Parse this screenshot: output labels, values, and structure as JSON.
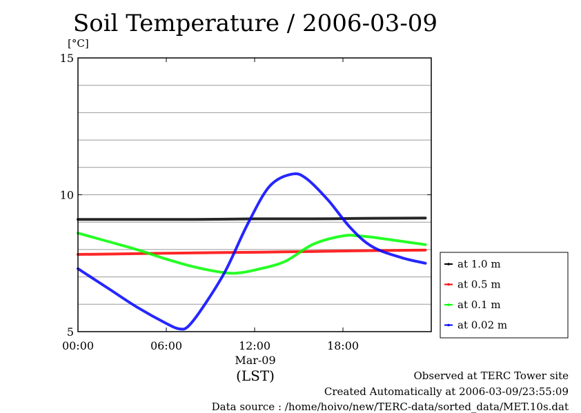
{
  "title": "Soil Temperature / 2006-03-09",
  "ylabel": "[°C]",
  "xlabel_date": "Mar-09",
  "xlabel_tz": "(LST)",
  "footer": {
    "line1": "Observed at TERC Tower site",
    "line2": "Created Automatically at 2006-03-09/23:55:09",
    "line3": "Data source : /home/hoivo/new/TERC-data/sorted_data/MET.10s.dat"
  },
  "chart_data": {
    "type": "line",
    "title": "Soil Temperature / 2006-03-09",
    "ylabel": "[°C]",
    "xlabel": "(LST)",
    "xlim": [
      0,
      24
    ],
    "ylim": [
      5,
      15
    ],
    "x_ticks": [
      0,
      6,
      12,
      18
    ],
    "x_tick_labels": [
      "00:00",
      "06:00",
      "12:00",
      "18:00"
    ],
    "y_ticks": [
      5,
      10,
      15
    ],
    "y_tick_labels": [
      "5",
      "10",
      "15"
    ],
    "grid_y": [
      6,
      7,
      8,
      9,
      10,
      11,
      12,
      13,
      14
    ],
    "legend_position": "right",
    "series": [
      {
        "name": "at 1.0 m",
        "color": "#000000",
        "x": [
          0,
          4,
          8,
          12,
          16,
          20,
          23.6
        ],
        "y": [
          9.1,
          9.1,
          9.1,
          9.12,
          9.12,
          9.14,
          9.15
        ]
      },
      {
        "name": "at 0.5 m",
        "color": "#ff0000",
        "x": [
          0,
          4,
          8,
          12,
          16,
          20,
          23.6
        ],
        "y": [
          7.82,
          7.85,
          7.88,
          7.9,
          7.93,
          7.96,
          7.98
        ]
      },
      {
        "name": "at 0.1 m",
        "color": "#00ff00",
        "x": [
          0,
          2,
          4,
          6,
          8,
          10,
          11,
          12,
          14,
          16,
          18,
          19,
          20,
          22,
          23.6
        ],
        "y": [
          8.6,
          8.3,
          8.0,
          7.65,
          7.35,
          7.15,
          7.15,
          7.25,
          7.55,
          8.2,
          8.5,
          8.5,
          8.45,
          8.3,
          8.18
        ]
      },
      {
        "name": "at 0.02 m",
        "color": "#0000ff",
        "x": [
          0,
          2,
          4,
          6,
          6.9,
          7.5,
          8.5,
          10,
          11.5,
          13,
          14.5,
          15.5,
          17,
          18.5,
          20,
          22,
          23.6
        ],
        "y": [
          7.3,
          6.6,
          5.9,
          5.3,
          5.1,
          5.2,
          5.9,
          7.2,
          8.9,
          10.3,
          10.75,
          10.6,
          9.8,
          8.8,
          8.1,
          7.7,
          7.5
        ]
      }
    ]
  }
}
